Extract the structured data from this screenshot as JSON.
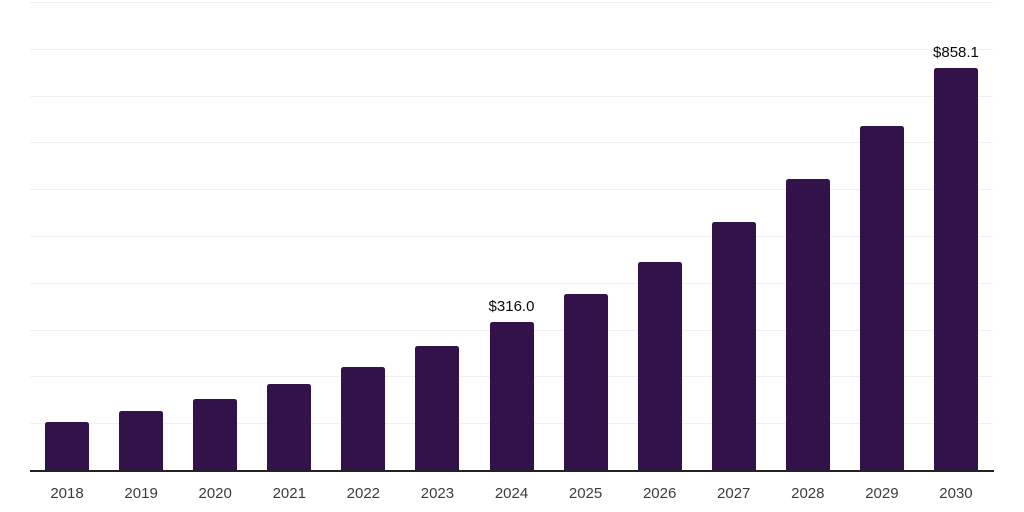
{
  "chart_data": {
    "type": "bar",
    "title": "",
    "xlabel": "",
    "ylabel": "",
    "categories": [
      "2018",
      "2019",
      "2020",
      "2021",
      "2022",
      "2023",
      "2024",
      "2025",
      "2026",
      "2027",
      "2028",
      "2029",
      "2030"
    ],
    "values": [
      102.5,
      126.0,
      151.6,
      183.6,
      219.9,
      264.8,
      316.0,
      376.8,
      444.8,
      528.9,
      622.8,
      734.5,
      858.1
    ],
    "data_labels": [
      "",
      "",
      "",
      "",
      "",
      "",
      "$316.0",
      "",
      "",
      "",
      "",
      "",
      "$858.1"
    ],
    "ylim": [
      0,
      1000
    ],
    "gridline_step": 100,
    "grid": "horizontal",
    "legend_position": "none",
    "y_tick_labels_visible": false,
    "bar_color": "#33124a",
    "gridline_color": "#f0f0f0",
    "axis_line_color": "#222222",
    "tick_label_color": "#3c3c3c",
    "data_label_color": "#0a0a0a"
  }
}
